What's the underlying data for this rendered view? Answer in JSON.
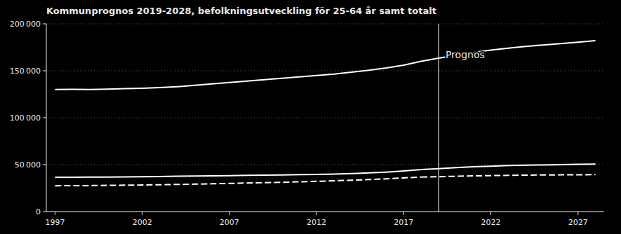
{
  "chart_data": {
    "type": "line",
    "title": "Kommunprognos 2019-2028, befolkningsutveckling för 25-64 år samt totalt",
    "xlim": [
      1996.5,
      2028.5
    ],
    "xticks": [
      1997,
      2002,
      2007,
      2012,
      2017,
      2022,
      2027
    ],
    "ylim": [
      0,
      200000
    ],
    "yticks": [
      0,
      {
        "value": 50000,
        "label": "50 000"
      },
      {
        "value": 100000,
        "label": "100 000"
      },
      {
        "value": 150000,
        "label": "150 000"
      },
      {
        "value": 200000,
        "label": "200 000"
      }
    ],
    "grid": true,
    "vlines": [
      2019
    ],
    "annotations": [
      {
        "text": "Prognos",
        "x": 2019.4,
        "y": 167000
      }
    ],
    "series": [
      {
        "x": [
          1997,
          1998,
          1999,
          2000,
          2001,
          2002,
          2003,
          2004,
          2005,
          2006,
          2007,
          2008,
          2009,
          2010,
          2011,
          2012,
          2013,
          2014,
          2015,
          2016,
          2017,
          2018
        ],
        "values": [
          130000,
          130200,
          130100,
          130500,
          131000,
          131300,
          132000,
          133000,
          134500,
          136000,
          137500,
          139000,
          140500,
          142000,
          143500,
          145000,
          146500,
          148500,
          150500,
          153000,
          156000,
          160000
        ],
        "color": "#ffffff",
        "line_style": "solid"
      },
      {
        "x": [
          2018,
          2019,
          2020,
          2021,
          2022,
          2023,
          2024,
          2025,
          2026,
          2027,
          2028
        ],
        "values": [
          160000,
          163500,
          166500,
          169500,
          172000,
          174000,
          176000,
          177500,
          179000,
          180500,
          182000
        ],
        "color": "#ffffff",
        "line_style": "solid"
      },
      {
        "x": [
          1997,
          1998,
          1999,
          2000,
          2001,
          2002,
          2003,
          2004,
          2005,
          2006,
          2007,
          2008,
          2009,
          2010,
          2011,
          2012,
          2013,
          2014,
          2015,
          2016,
          2017,
          2018
        ],
        "values": [
          36500,
          36600,
          36700,
          36800,
          37000,
          37200,
          37400,
          37600,
          37900,
          38100,
          38300,
          38600,
          38800,
          39000,
          39300,
          39600,
          40000,
          40500,
          41200,
          42000,
          43200,
          44800
        ],
        "color": "#ffffff",
        "line_style": "solid"
      },
      {
        "x": [
          2018,
          2019,
          2020,
          2021,
          2022,
          2023,
          2024,
          2025,
          2026,
          2027,
          2028
        ],
        "values": [
          44800,
          45800,
          46800,
          47700,
          48400,
          49000,
          49400,
          49700,
          50000,
          50300,
          50600
        ],
        "color": "#ffffff",
        "line_style": "solid"
      },
      {
        "x": [
          1997,
          1998,
          1999,
          2000,
          2001,
          2002,
          2003,
          2004,
          2005,
          2006,
          2007,
          2008,
          2009,
          2010,
          2011,
          2012,
          2013,
          2014,
          2015,
          2016,
          2017,
          2018
        ],
        "values": [
          27500,
          27600,
          27700,
          27900,
          28100,
          28300,
          28600,
          28900,
          29200,
          29600,
          30000,
          30400,
          30800,
          31200,
          31700,
          32200,
          32800,
          33400,
          34100,
          34900,
          35900,
          36800
        ],
        "color": "#ffffff",
        "line_style": "dashed"
      },
      {
        "x": [
          2018,
          2019,
          2020,
          2021,
          2022,
          2023,
          2024,
          2025,
          2026,
          2027,
          2028
        ],
        "values": [
          36800,
          37200,
          37600,
          38000,
          38300,
          38600,
          38800,
          39000,
          39100,
          39200,
          39300
        ],
        "color": "#ffffff",
        "line_style": "dashed"
      }
    ]
  }
}
